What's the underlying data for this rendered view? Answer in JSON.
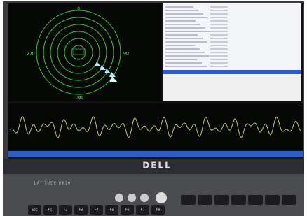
{
  "screen": {
    "radar": {
      "bearings": [
        "0",
        "90",
        "180",
        "270"
      ]
    }
  },
  "bezel": {
    "brand": "DELL"
  },
  "keyboard": {
    "model": "LATITUDE D810",
    "keys": [
      "Esc",
      "F1",
      "F2",
      "F3",
      "F4",
      "F5",
      "F6",
      "F7",
      "F8"
    ]
  }
}
